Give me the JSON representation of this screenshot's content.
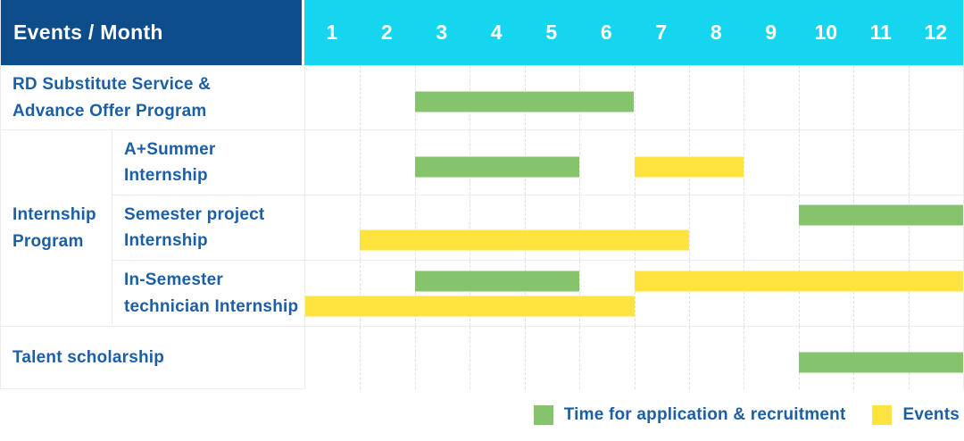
{
  "header": {
    "title": "Events / Month"
  },
  "colors": {
    "header_bg": "#0d4d8c",
    "months_bg": "#16d5ef",
    "green": "#85c46d",
    "yellow": "#ffe33f",
    "text_blue": "#1d5fa6"
  },
  "chart_data": {
    "type": "table",
    "subtype": "gantt",
    "title": "Events / Month",
    "x_categories": [
      "1",
      "2",
      "3",
      "4",
      "5",
      "6",
      "7",
      "8",
      "9",
      "10",
      "11",
      "12"
    ],
    "x_range": [
      1,
      12
    ],
    "grid": "dashed-vertical-month-separators",
    "legend_position": "bottom-right",
    "group": {
      "label": "Internship Program",
      "label_lines": [
        "Internship",
        "Program"
      ],
      "member_rows": [
        1,
        2,
        3
      ]
    },
    "rows": [
      {
        "id": "rd-substitute-service-advance-offer-program",
        "label": "RD Substitute Service & Advance Offer Program",
        "label_lines": [
          "RD Substitute Service &",
          "Advance Offer Program"
        ],
        "bars": [
          {
            "color": "green",
            "start_month": 3,
            "end_month": 6,
            "lane": "single"
          }
        ]
      },
      {
        "id": "a-plus-summer-internship",
        "label": "A+Summer Internship",
        "label_lines": [
          "A+Summer",
          "Internship"
        ],
        "bars": [
          {
            "color": "green",
            "start_month": 3,
            "end_month": 5,
            "lane": "single"
          },
          {
            "color": "yellow",
            "start_month": 7,
            "end_month": 8,
            "lane": "single"
          }
        ]
      },
      {
        "id": "semester-project-internship",
        "label": "Semester project Internship",
        "label_lines": [
          "Semester project",
          "Internship"
        ],
        "bars": [
          {
            "color": "green",
            "start_month": 10,
            "end_month": 12,
            "lane": "top"
          },
          {
            "color": "yellow",
            "start_month": 2,
            "end_month": 7,
            "lane": "bottom"
          }
        ]
      },
      {
        "id": "in-semester-technician-internship",
        "label": "In-Semester technician Internship",
        "label_lines": [
          "In-Semester",
          "technician Internship"
        ],
        "bars": [
          {
            "color": "green",
            "start_month": 3,
            "end_month": 5,
            "lane": "top"
          },
          {
            "color": "yellow",
            "start_month": 7,
            "end_month": 12,
            "lane": "top"
          },
          {
            "color": "yellow",
            "start_month": 1,
            "end_month": 6,
            "lane": "bottom"
          }
        ]
      },
      {
        "id": "talent-scholarship",
        "label": "Talent scholarship",
        "label_lines": [
          "Talent scholarship"
        ],
        "bars": [
          {
            "color": "green",
            "start_month": 10,
            "end_month": 12,
            "lane": "single"
          }
        ]
      }
    ],
    "legend": [
      {
        "swatch": "green",
        "label": "Time for application & recruitment"
      },
      {
        "swatch": "yellow",
        "label": "Events"
      }
    ]
  }
}
